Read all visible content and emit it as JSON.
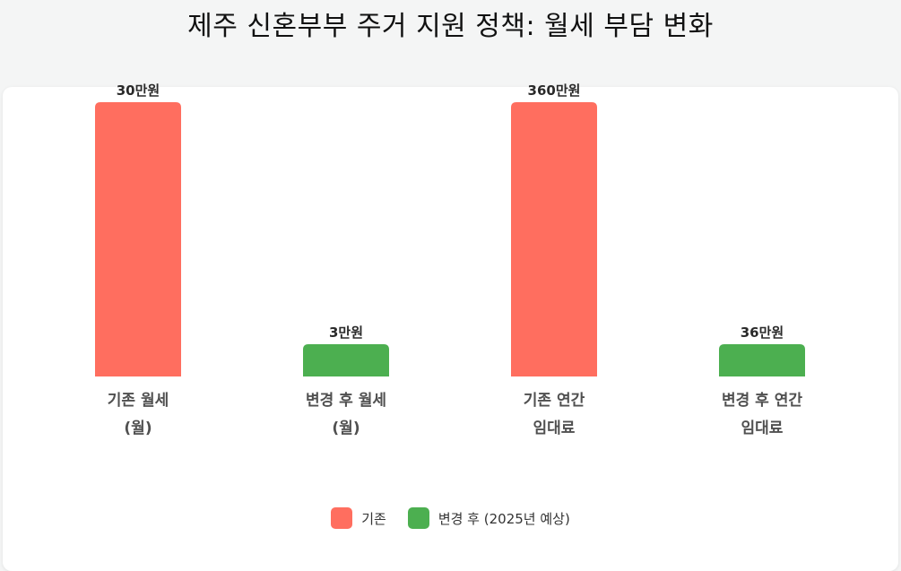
{
  "title": "제주 신혼부부 주거 지원 정책: 월세 부담 변화",
  "colors": {
    "before": "#ff6e5f",
    "after": "#4caf50"
  },
  "legend": [
    {
      "label": "기존",
      "color": "#ff6e5f"
    },
    {
      "label": "변경 후 (2025년 예상)",
      "color": "#4caf50"
    }
  ],
  "chart_data": {
    "type": "bar",
    "categories": [
      [
        "기존 월세",
        "(월)"
      ],
      [
        "변경 후 월세",
        "(월)"
      ],
      [
        "기존 연간",
        "임대료"
      ],
      [
        "변경 후 연간",
        "임대료"
      ]
    ],
    "values": [
      30,
      3,
      360,
      36
    ],
    "value_labels": [
      "30만원",
      "3만원",
      "360만원",
      "36만원"
    ],
    "series_index": [
      0,
      1,
      0,
      1
    ],
    "unit": "만원",
    "grid": false,
    "legend_position": "bottom",
    "note": "Paired bars are scaled per pair (monthly and annual each normalized to its own maximum)"
  }
}
